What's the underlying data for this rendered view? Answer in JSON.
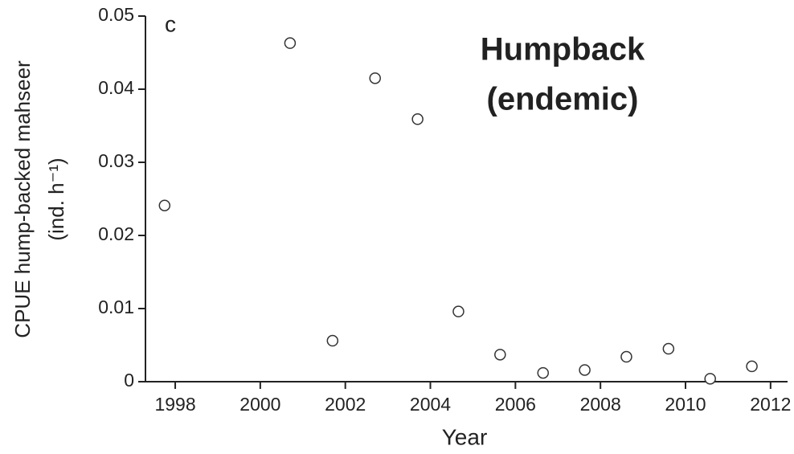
{
  "chart_data": {
    "type": "scatter",
    "panel_label": "c",
    "annotation": [
      "Humpback",
      "(endemic)"
    ],
    "xlabel": "Year",
    "ylabel": [
      "CPUE hump-backed mahseer",
      "(ind. h⁻¹)"
    ],
    "x": [
      1997.75,
      2000.7,
      2001.7,
      2002.7,
      2003.7,
      2004.66,
      2005.64,
      2006.65,
      2007.63,
      2008.61,
      2009.6,
      2010.58,
      2011.56
    ],
    "values": [
      0.0241,
      0.0463,
      0.0056,
      0.0415,
      0.0359,
      0.0096,
      0.0037,
      0.0012,
      0.0016,
      0.0034,
      0.0045,
      0.0004,
      0.0021
    ],
    "color": "#333333",
    "xlim": [
      1997.3,
      2012.4
    ],
    "ylim": [
      0,
      0.05
    ],
    "xticks": [
      1998,
      2000,
      2002,
      2004,
      2006,
      2008,
      2010,
      2012
    ],
    "yticks": [
      0,
      0.01,
      0.02,
      0.03,
      0.04,
      0.05
    ]
  }
}
